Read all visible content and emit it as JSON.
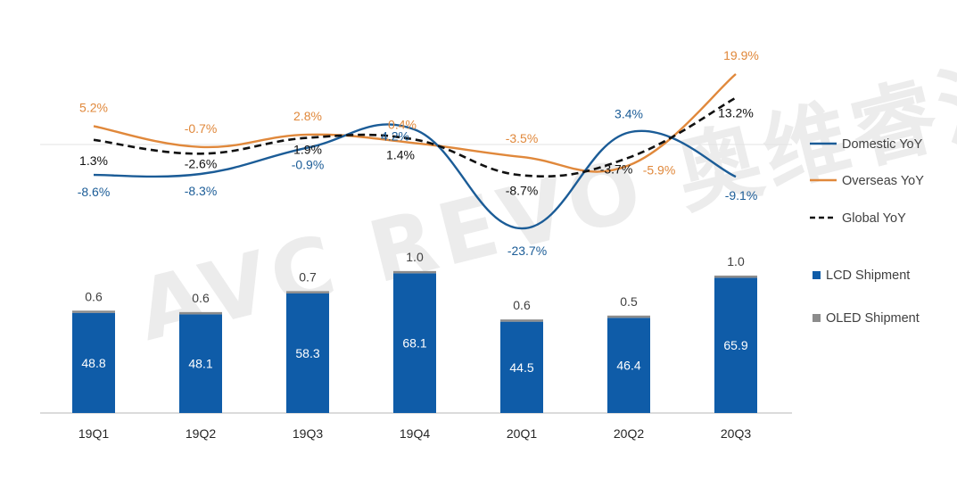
{
  "chart_data": {
    "type": "bar",
    "categories": [
      "19Q1",
      "19Q2",
      "19Q3",
      "19Q4",
      "20Q1",
      "20Q2",
      "20Q3"
    ],
    "series": [
      {
        "name": "LCD Shipment",
        "type": "bar",
        "color": "#0f5ca8",
        "values": [
          48.8,
          48.1,
          58.3,
          68.1,
          44.5,
          46.4,
          65.9
        ]
      },
      {
        "name": "OLED Shipment",
        "type": "bar",
        "color": "#8c8c8c",
        "values": [
          0.6,
          0.6,
          0.7,
          1.0,
          0.6,
          0.5,
          1.0
        ]
      },
      {
        "name": "Domestic YoY",
        "type": "line",
        "color": "#1b5c97",
        "values": [
          -8.6,
          -8.3,
          -0.9,
          4.2,
          -23.7,
          3.4,
          -9.1
        ],
        "labels": [
          "-8.6%",
          "-8.3%",
          "-0.9%",
          "4.2%",
          "-23.7%",
          "3.4%",
          "-9.1%"
        ]
      },
      {
        "name": "Overseas YoY",
        "type": "line",
        "color": "#e0883b",
        "values": [
          5.2,
          -0.7,
          2.8,
          0.4,
          -3.5,
          -5.9,
          19.9
        ],
        "labels": [
          "5.2%",
          "-0.7%",
          "2.8%",
          "0.4%",
          "-3.5%",
          "-5.9%",
          "19.9%"
        ]
      },
      {
        "name": "Global YoY",
        "type": "line",
        "color": "#111111",
        "dashed": true,
        "values": [
          1.3,
          -2.6,
          1.9,
          1.4,
          -8.7,
          -3.7,
          13.2
        ],
        "labels": [
          "1.3%",
          "-2.6%",
          "1.9%",
          "1.4%",
          "-8.7%",
          "-3.7%",
          "13.2%"
        ]
      }
    ],
    "legend_placement": "right",
    "grid": false
  },
  "watermark": "AVC REVO 奥维睿沃"
}
